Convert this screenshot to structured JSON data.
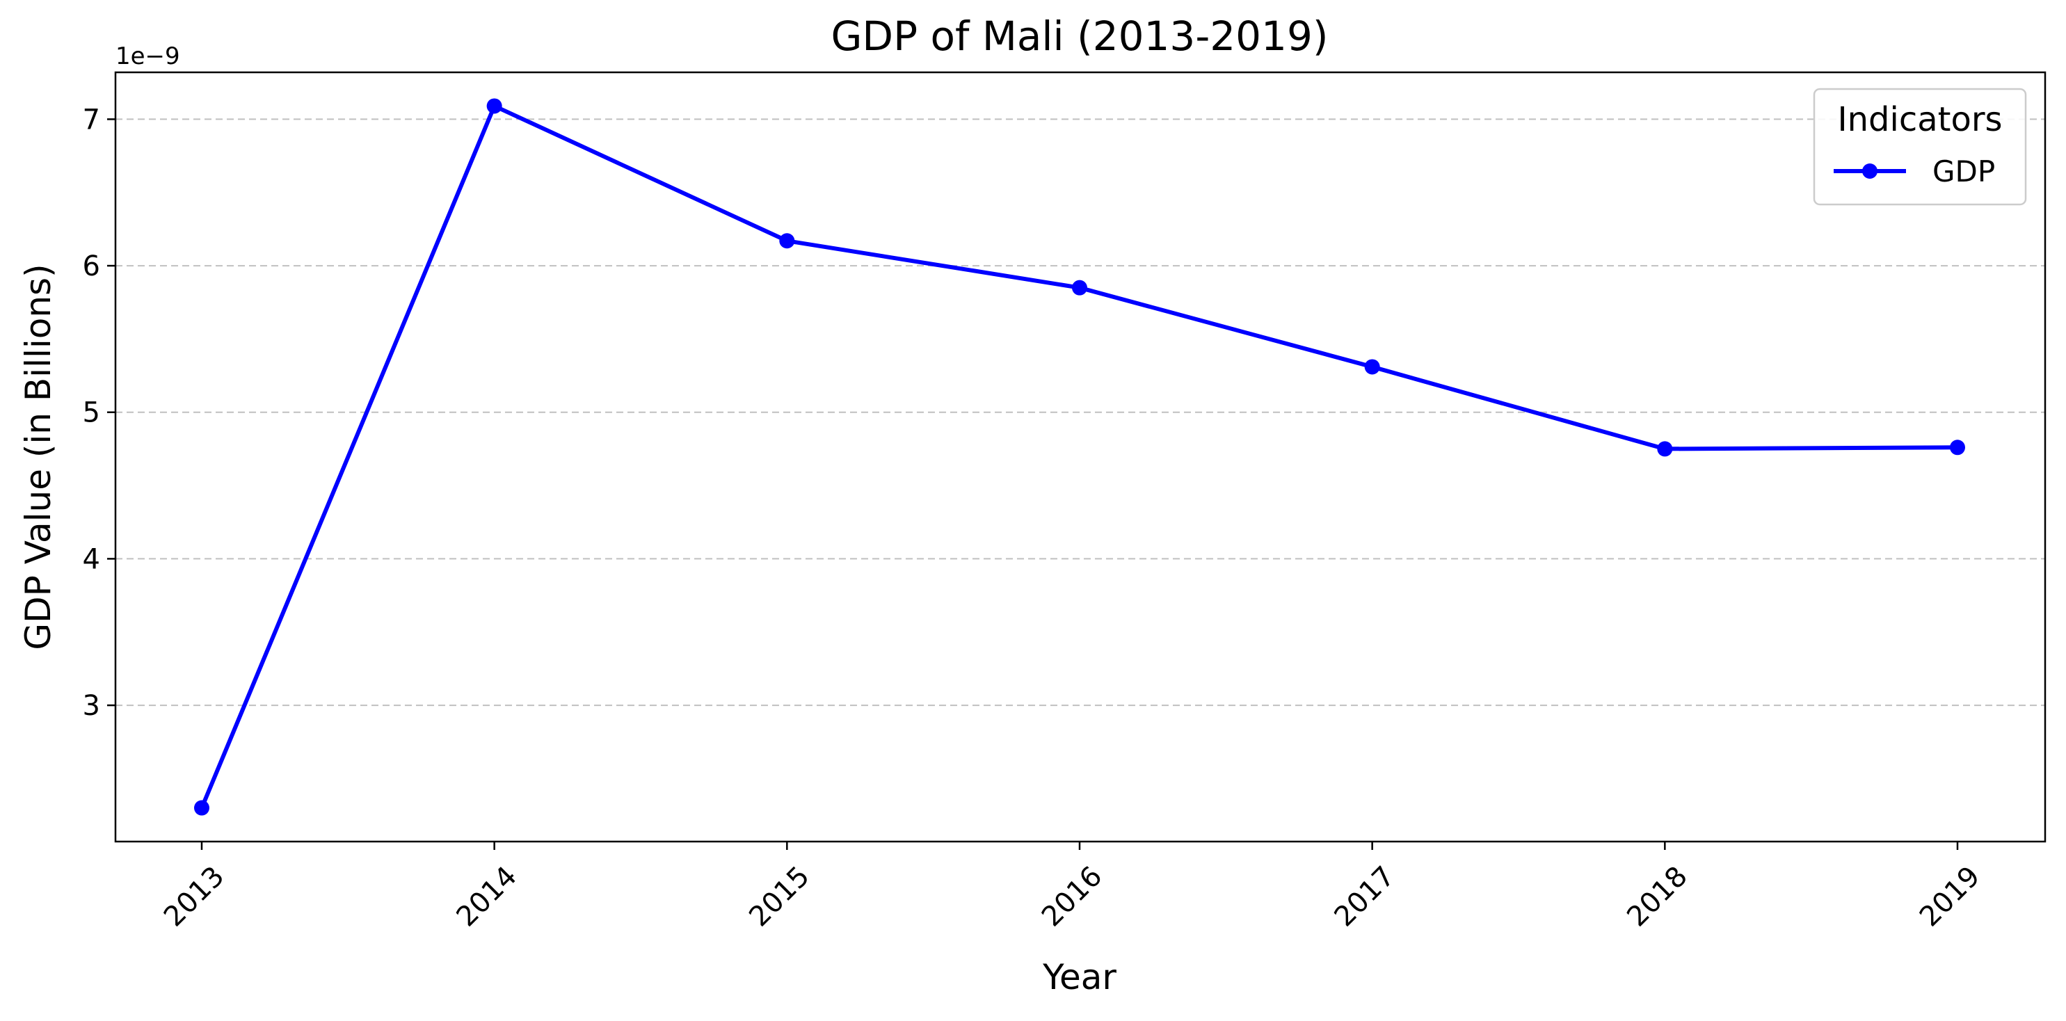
{
  "chart_data": {
    "type": "line",
    "title": "GDP of Mali (2013-2019)",
    "xlabel": "Year",
    "ylabel": "GDP Value (in Billions)",
    "y_offset_label": "1e−9",
    "x": [
      "2013",
      "2014",
      "2015",
      "2016",
      "2017",
      "2018",
      "2019"
    ],
    "series": [
      {
        "name": "GDP",
        "values": [
          2.3e-09,
          7.09e-09,
          6.17e-09,
          5.85e-09,
          5.31e-09,
          4.75e-09,
          4.76e-09
        ],
        "color": "#0000ff",
        "marker": "circle"
      }
    ],
    "yticks": [
      3,
      4,
      5,
      6,
      7
    ],
    "ylim": [
      2.07e-09,
      7.32e-09
    ],
    "grid": "horizontal dashed",
    "legend": {
      "title": "Indicators",
      "placement": "top-right"
    }
  }
}
